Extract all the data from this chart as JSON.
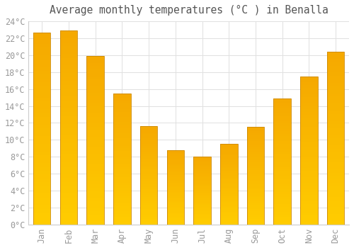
{
  "months": [
    "Jan",
    "Feb",
    "Mar",
    "Apr",
    "May",
    "Jun",
    "Jul",
    "Aug",
    "Sep",
    "Oct",
    "Nov",
    "Dec"
  ],
  "values": [
    22.7,
    22.9,
    19.9,
    15.5,
    11.6,
    8.8,
    8.0,
    9.5,
    11.5,
    14.9,
    17.5,
    20.4
  ],
  "bar_color_bottom": "#FFCC00",
  "bar_color_top": "#F5A800",
  "bar_edge_color": "#CC8800",
  "title": "Average monthly temperatures (°C ) in Benalla",
  "ylim": [
    0,
    24
  ],
  "ytick_step": 2,
  "background_color": "#ffffff",
  "grid_color": "#e0e0e0",
  "title_fontsize": 10.5,
  "tick_fontsize": 8.5,
  "tick_label_color": "#999999",
  "title_color": "#555555",
  "bar_width": 0.65
}
